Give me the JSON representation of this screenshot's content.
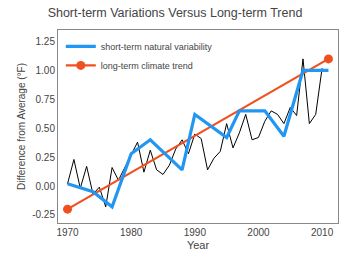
{
  "chart_data": {
    "type": "line",
    "title": "Short-term Variations Versus Long-term Trend",
    "xlabel": "Year",
    "ylabel": "Difference from Average (°F)",
    "xlim": [
      1968.5,
      2012.5
    ],
    "ylim": [
      -0.32,
      1.35
    ],
    "xticks": [
      1970,
      1980,
      1990,
      2000,
      2010
    ],
    "yticks": [
      -0.25,
      {
        "value": 0,
        "label": "0.00"
      },
      0.25,
      {
        "value": 0.5,
        "label": "0.50"
      },
      0.75,
      {
        "value": 1.0,
        "label": "1.00"
      },
      1.25
    ],
    "grid": false,
    "legend": "upper left",
    "series": [
      {
        "color": "black",
        "x": [
          1970,
          1971,
          1972,
          1973,
          1974,
          1975,
          1976,
          1977,
          1978,
          1979,
          1980,
          1981,
          1982,
          1983,
          1984,
          1985,
          1986,
          1987,
          1988,
          1989,
          1990,
          1991,
          1992,
          1993,
          1994,
          1995,
          1996,
          1997,
          1998,
          1999,
          2000,
          2001,
          2002,
          2003,
          2004,
          2005,
          2006,
          2007,
          2008,
          2009,
          2010
        ],
        "values": [
          0.02,
          0.23,
          -0.02,
          0.17,
          -0.07,
          -0.01,
          -0.18,
          0.16,
          0.05,
          0.16,
          0.26,
          0.38,
          0.12,
          0.31,
          0.14,
          0.1,
          0.18,
          0.32,
          0.4,
          0.28,
          0.45,
          0.41,
          0.14,
          0.24,
          0.3,
          0.54,
          0.33,
          0.46,
          0.62,
          0.4,
          0.42,
          0.56,
          0.65,
          0.62,
          0.54,
          0.68,
          0.61,
          1.1,
          0.54,
          0.62,
          1.02
        ]
      },
      {
        "name": "long-term climate trend",
        "color": "#f05020",
        "marker": "circle",
        "x": [
          1970,
          2011
        ],
        "values": [
          -0.2,
          1.1
        ]
      },
      {
        "name": "short-term natural variability",
        "color": "#2196F3",
        "x": [
          1970,
          1974,
          1977,
          1980,
          1983,
          1988,
          1990,
          1995,
          1997,
          2001,
          2004,
          2007,
          2011
        ],
        "values": [
          0.02,
          -0.05,
          -0.18,
          0.28,
          0.4,
          0.14,
          0.62,
          0.42,
          0.65,
          0.65,
          0.43,
          1.0,
          1.0
        ]
      }
    ]
  }
}
